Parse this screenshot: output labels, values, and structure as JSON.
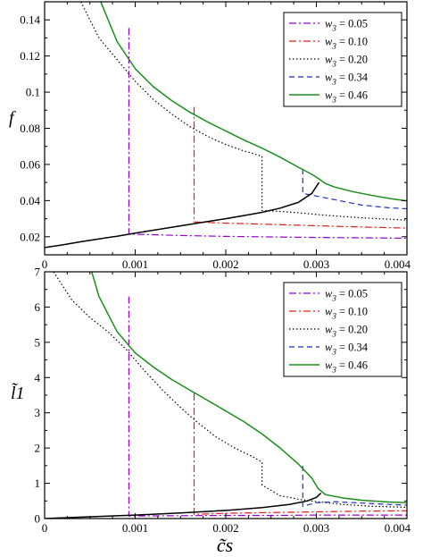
{
  "chart_data": [
    {
      "type": "line",
      "panel": "top",
      "xlabel": "",
      "ylabel": "f",
      "xlim": [
        0,
        0.004
      ],
      "ylim": [
        0.01,
        0.15
      ],
      "xticks": [
        "0",
        "0.001",
        "0.002",
        "0.003",
        "0.004"
      ],
      "yticks": [
        "0.02",
        "0.04",
        "0.06",
        "0.08",
        "0.1",
        "0.12",
        "0.14"
      ],
      "legend_position": "top-right",
      "series": [
        {
          "name": "w3 = 0.05",
          "color": "#9400d3",
          "dash": "dashdot",
          "points": [
            [
              0.00093,
              0.1355
            ],
            [
              0.00093,
              0.0215
            ],
            [
              0.0015,
              0.0207
            ],
            [
              0.002,
              0.0202
            ],
            [
              0.0025,
              0.0199
            ],
            [
              0.003,
              0.0196
            ],
            [
              0.0035,
              0.0194
            ],
            [
              0.004,
              0.0192
            ]
          ]
        },
        {
          "name": "w3 = 0.10",
          "color": "#e0201b",
          "dash": "dashdot",
          "points": [
            [
              0.00165,
              0.0918
            ],
            [
              0.00165,
              0.0282
            ],
            [
              0.002,
              0.0275
            ],
            [
              0.0025,
              0.0268
            ],
            [
              0.003,
              0.0261
            ],
            [
              0.0035,
              0.0254
            ],
            [
              0.004,
              0.0248
            ]
          ]
        },
        {
          "name": "w3 = 0.20",
          "color": "#000000",
          "dash": "dotted",
          "points": [
            [
              0.0004,
              0.15
            ],
            [
              0.0006,
              0.13
            ],
            [
              0.0008,
              0.118
            ],
            [
              0.001,
              0.106
            ],
            [
              0.0012,
              0.096
            ],
            [
              0.0014,
              0.088
            ],
            [
              0.0016,
              0.081
            ],
            [
              0.0018,
              0.0755
            ],
            [
              0.002,
              0.071
            ],
            [
              0.0022,
              0.0675
            ],
            [
              0.0024,
              0.0645
            ],
            [
              0.0024,
              0.0345
            ],
            [
              0.0026,
              0.034
            ],
            [
              0.0028,
              0.0333
            ],
            [
              0.003,
              0.0323
            ],
            [
              0.0032,
              0.0315
            ],
            [
              0.0035,
              0.0305
            ],
            [
              0.004,
              0.0292
            ]
          ]
        },
        {
          "name": "w3 = 0.34",
          "color": "#1f2fbf",
          "dash": "dashed",
          "points": [
            [
              0.00285,
              0.0575
            ],
            [
              0.00285,
              0.044
            ],
            [
              0.003,
              0.0425
            ],
            [
              0.0032,
              0.0405
            ],
            [
              0.0035,
              0.0375
            ],
            [
              0.0038,
              0.036
            ],
            [
              0.004,
              0.0355
            ]
          ]
        },
        {
          "name": "w3 = 0.46",
          "color": "#1a8f1a",
          "dash": "solid",
          "points": [
            [
              0.00062,
              0.15
            ],
            [
              0.0008,
              0.128
            ],
            [
              0.001,
              0.113
            ],
            [
              0.0012,
              0.103
            ],
            [
              0.0014,
              0.0955
            ],
            [
              0.0016,
              0.089
            ],
            [
              0.0018,
              0.0835
            ],
            [
              0.002,
              0.0785
            ],
            [
              0.0022,
              0.0735
            ],
            [
              0.0024,
              0.069
            ],
            [
              0.0026,
              0.064
            ],
            [
              0.0028,
              0.0585
            ],
            [
              0.00295,
              0.0545
            ],
            [
              0.00303,
              0.052
            ],
            [
              0.0031,
              0.0495
            ],
            [
              0.0032,
              0.0475
            ],
            [
              0.0034,
              0.045
            ],
            [
              0.0036,
              0.043
            ],
            [
              0.0038,
              0.0412
            ],
            [
              0.004,
              0.0398
            ]
          ]
        },
        {
          "name": "",
          "color": "#000000",
          "dash": "solid",
          "points": [
            [
              0,
              0.014
            ],
            [
              0.0002,
              0.0155
            ],
            [
              0.0004,
              0.0172
            ],
            [
              0.0006,
              0.0188
            ],
            [
              0.0008,
              0.0203
            ],
            [
              0.001,
              0.022
            ],
            [
              0.0012,
              0.0236
            ],
            [
              0.0014,
              0.0252
            ],
            [
              0.0016,
              0.0268
            ],
            [
              0.0018,
              0.0284
            ],
            [
              0.002,
              0.03
            ],
            [
              0.0022,
              0.0317
            ],
            [
              0.0024,
              0.0335
            ],
            [
              0.0026,
              0.0358
            ],
            [
              0.0028,
              0.039
            ],
            [
              0.00295,
              0.044
            ],
            [
              0.00303,
              0.05
            ]
          ]
        }
      ]
    },
    {
      "type": "line",
      "panel": "bottom",
      "xlabel": "c̃s",
      "ylabel": "l̃1",
      "xlim": [
        0,
        0.004
      ],
      "ylim": [
        0,
        7
      ],
      "xticks": [
        "0",
        "0.001",
        "0.002",
        "0.003",
        "0.004"
      ],
      "yticks": [
        "0",
        "1",
        "2",
        "3",
        "4",
        "5",
        "6",
        "7"
      ],
      "legend_position": "top-right",
      "series": [
        {
          "name": "w3 = 0.05",
          "color": "#9400d3",
          "dash": "dashdot",
          "points": [
            [
              0.00093,
              6.3
            ],
            [
              0.00093,
              0.07
            ],
            [
              0.0015,
              0.08
            ],
            [
              0.002,
              0.09
            ],
            [
              0.0025,
              0.09
            ],
            [
              0.003,
              0.1
            ],
            [
              0.0035,
              0.1
            ],
            [
              0.004,
              0.1
            ]
          ]
        },
        {
          "name": "w3 = 0.10",
          "color": "#e0201b",
          "dash": "dashdot",
          "points": [
            [
              0.00165,
              3.55
            ],
            [
              0.00165,
              0.12
            ],
            [
              0.002,
              0.15
            ],
            [
              0.0025,
              0.17
            ],
            [
              0.003,
              0.19
            ],
            [
              0.0035,
              0.21
            ],
            [
              0.004,
              0.22
            ]
          ]
        },
        {
          "name": "w3 = 0.20",
          "color": "#000000",
          "dash": "dotted",
          "points": [
            [
              0.0001,
              7.0
            ],
            [
              0.0003,
              6.2
            ],
            [
              0.0005,
              5.7
            ],
            [
              0.0007,
              5.3
            ],
            [
              0.0009,
              4.8
            ],
            [
              0.0011,
              4.2
            ],
            [
              0.0013,
              3.65
            ],
            [
              0.0015,
              3.15
            ],
            [
              0.0017,
              2.7
            ],
            [
              0.0019,
              2.3
            ],
            [
              0.0021,
              2.0
            ],
            [
              0.0023,
              1.75
            ],
            [
              0.0024,
              1.6
            ],
            [
              0.0024,
              0.95
            ],
            [
              0.0026,
              0.65
            ],
            [
              0.0028,
              0.55
            ],
            [
              0.003,
              0.48
            ],
            [
              0.0033,
              0.4
            ],
            [
              0.0036,
              0.35
            ],
            [
              0.004,
              0.32
            ]
          ]
        },
        {
          "name": "w3 = 0.34",
          "color": "#1f2fbf",
          "dash": "dashed",
          "points": [
            [
              0.00285,
              1.5
            ],
            [
              0.00285,
              0.35
            ],
            [
              0.003,
              0.45
            ],
            [
              0.0032,
              0.48
            ],
            [
              0.0035,
              0.44
            ],
            [
              0.0038,
              0.4
            ],
            [
              0.004,
              0.38
            ]
          ]
        },
        {
          "name": "w3 = 0.46",
          "color": "#1a8f1a",
          "dash": "solid",
          "points": [
            [
              0.00052,
              7.0
            ],
            [
              0.0006,
              6.3
            ],
            [
              0.0008,
              5.3
            ],
            [
              0.001,
              4.7
            ],
            [
              0.0012,
              4.3
            ],
            [
              0.0014,
              3.95
            ],
            [
              0.0016,
              3.65
            ],
            [
              0.0018,
              3.35
            ],
            [
              0.002,
              3.05
            ],
            [
              0.0022,
              2.75
            ],
            [
              0.0024,
              2.4
            ],
            [
              0.0026,
              2.0
            ],
            [
              0.0028,
              1.55
            ],
            [
              0.00295,
              1.15
            ],
            [
              0.00302,
              0.85
            ],
            [
              0.0031,
              0.68
            ],
            [
              0.0033,
              0.58
            ],
            [
              0.0035,
              0.52
            ],
            [
              0.0038,
              0.47
            ],
            [
              0.004,
              0.45
            ]
          ]
        },
        {
          "name": "",
          "color": "#000000",
          "dash": "solid",
          "points": [
            [
              0,
              0.0
            ],
            [
              0.0005,
              0.05
            ],
            [
              0.001,
              0.1
            ],
            [
              0.0015,
              0.16
            ],
            [
              0.002,
              0.23
            ],
            [
              0.0024,
              0.31
            ],
            [
              0.0027,
              0.4
            ],
            [
              0.0029,
              0.5
            ],
            [
              0.003,
              0.6
            ],
            [
              0.00305,
              0.72
            ]
          ]
        }
      ]
    }
  ]
}
